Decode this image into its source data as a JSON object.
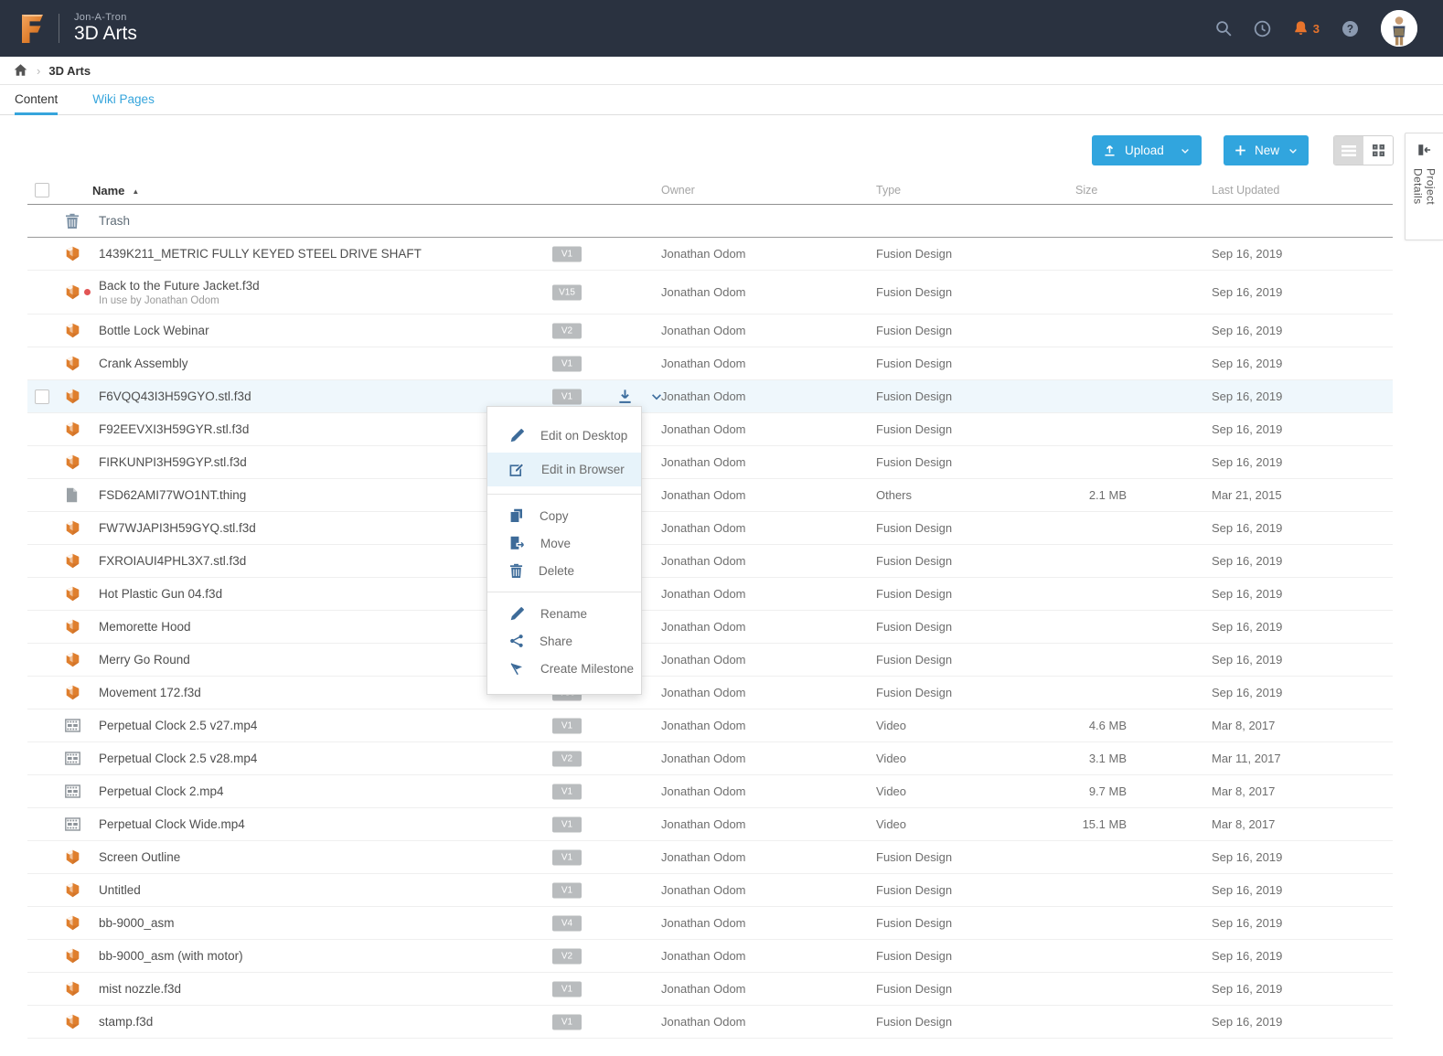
{
  "header": {
    "project": "Jon-A-Tron",
    "title": "3D Arts",
    "notification_count": "3",
    "icons": [
      "search-icon",
      "history-icon",
      "bell-icon",
      "help-icon",
      "avatar"
    ]
  },
  "breadcrumb": {
    "home_icon": "home-icon",
    "current": "3D Arts"
  },
  "tabs": [
    {
      "label": "Content",
      "active": true
    },
    {
      "label": "Wiki Pages",
      "active": false
    }
  ],
  "toolbar": {
    "upload_label": "Upload",
    "new_label": "New",
    "view_modes": [
      "list-view-icon",
      "grid-view-icon"
    ],
    "panel_label": "Project Details"
  },
  "table": {
    "columns": [
      "Name",
      "Owner",
      "Type",
      "Size",
      "Last Updated"
    ],
    "sort": {
      "column": "Name",
      "direction": "asc"
    },
    "rows": [
      {
        "icon": "trash-icon",
        "name": "Trash",
        "is_trash": true
      },
      {
        "icon": "design-icon",
        "name": "1439K211_METRIC FULLY KEYED STEEL DRIVE SHAFT",
        "version": "V1",
        "owner": "Jonathan Odom",
        "file_type": "Fusion Design",
        "size": "",
        "updated": "Sep 16, 2019"
      },
      {
        "icon": "design-icon",
        "dot": true,
        "name": "Back to the Future Jacket.f3d",
        "subtext": "In use by Jonathan Odom",
        "version": "V15",
        "owner": "Jonathan Odom",
        "file_type": "Fusion Design",
        "size": "",
        "updated": "Sep 16, 2019"
      },
      {
        "icon": "design-icon",
        "name": "Bottle Lock Webinar",
        "version": "V2",
        "owner": "Jonathan Odom",
        "file_type": "Fusion Design",
        "size": "",
        "updated": "Sep 16, 2019"
      },
      {
        "icon": "design-icon",
        "name": "Crank Assembly",
        "version": "V1",
        "owner": "Jonathan Odom",
        "file_type": "Fusion Design",
        "size": "",
        "updated": "Sep 16, 2019"
      },
      {
        "icon": "design-icon",
        "name": "F6VQQ43I3H59GYO.stl.f3d",
        "version": "V1",
        "owner": "Jonathan Odom",
        "file_type": "Fusion Design",
        "size": "",
        "updated": "Sep 16, 2019",
        "selected": true
      },
      {
        "icon": "design-icon",
        "name": "F92EEVXI3H59GYR.stl.f3d",
        "version": null,
        "owner": "Jonathan Odom",
        "file_type": "Fusion Design",
        "size": "",
        "updated": "Sep 16, 2019"
      },
      {
        "icon": "design-icon",
        "name": "FIRKUNPI3H59GYP.stl.f3d",
        "version": null,
        "owner": "Jonathan Odom",
        "file_type": "Fusion Design",
        "size": "",
        "updated": "Sep 16, 2019"
      },
      {
        "icon": "file-icon",
        "name": "FSD62AMI77WO1NT.thing",
        "version": null,
        "owner": "Jonathan Odom",
        "file_type": "Others",
        "size": "2.1 MB",
        "updated": "Mar 21, 2015"
      },
      {
        "icon": "design-icon",
        "name": "FW7WJAPI3H59GYQ.stl.f3d",
        "version": null,
        "owner": "Jonathan Odom",
        "file_type": "Fusion Design",
        "size": "",
        "updated": "Sep 16, 2019"
      },
      {
        "icon": "design-icon",
        "name": "FXROIAUI4PHL3X7.stl.f3d",
        "version": null,
        "owner": "Jonathan Odom",
        "file_type": "Fusion Design",
        "size": "",
        "updated": "Sep 16, 2019"
      },
      {
        "icon": "design-icon",
        "name": "Hot Plastic Gun 04.f3d",
        "version": null,
        "owner": "Jonathan Odom",
        "file_type": "Fusion Design",
        "size": "",
        "updated": "Sep 16, 2019"
      },
      {
        "icon": "design-icon",
        "name": "Memorette Hood",
        "version": null,
        "owner": "Jonathan Odom",
        "file_type": "Fusion Design",
        "size": "",
        "updated": "Sep 16, 2019"
      },
      {
        "icon": "design-icon",
        "name": "Merry Go Round",
        "version": null,
        "owner": "Jonathan Odom",
        "file_type": "Fusion Design",
        "size": "",
        "updated": "Sep 16, 2019"
      },
      {
        "icon": "design-icon",
        "name": "Movement 172.f3d",
        "version": "V30",
        "owner": "Jonathan Odom",
        "file_type": "Fusion Design",
        "size": "",
        "updated": "Sep 16, 2019"
      },
      {
        "icon": "video-icon",
        "name": "Perpetual Clock 2.5 v27.mp4",
        "version": "V1",
        "owner": "Jonathan Odom",
        "file_type": "Video",
        "size": "4.6 MB",
        "updated": "Mar 8, 2017"
      },
      {
        "icon": "video-icon",
        "name": "Perpetual Clock 2.5 v28.mp4",
        "version": "V2",
        "owner": "Jonathan Odom",
        "file_type": "Video",
        "size": "3.1 MB",
        "updated": "Mar 11, 2017"
      },
      {
        "icon": "video-icon",
        "name": "Perpetual Clock 2.mp4",
        "version": "V1",
        "owner": "Jonathan Odom",
        "file_type": "Video",
        "size": "9.7 MB",
        "updated": "Mar 8, 2017"
      },
      {
        "icon": "video-icon",
        "name": "Perpetual Clock Wide.mp4",
        "version": "V1",
        "owner": "Jonathan Odom",
        "file_type": "Video",
        "size": "15.1 MB",
        "updated": "Mar 8, 2017"
      },
      {
        "icon": "design-icon",
        "name": "Screen Outline",
        "version": "V1",
        "owner": "Jonathan Odom",
        "file_type": "Fusion Design",
        "size": "",
        "updated": "Sep 16, 2019"
      },
      {
        "icon": "design-icon",
        "name": "Untitled",
        "version": "V1",
        "owner": "Jonathan Odom",
        "file_type": "Fusion Design",
        "size": "",
        "updated": "Sep 16, 2019"
      },
      {
        "icon": "design-icon",
        "name": "bb-9000_asm",
        "version": "V4",
        "owner": "Jonathan Odom",
        "file_type": "Fusion Design",
        "size": "",
        "updated": "Sep 16, 2019"
      },
      {
        "icon": "design-icon",
        "name": "bb-9000_asm (with motor)",
        "version": "V2",
        "owner": "Jonathan Odom",
        "file_type": "Fusion Design",
        "size": "",
        "updated": "Sep 16, 2019"
      },
      {
        "icon": "design-icon",
        "name": "mist nozzle.f3d",
        "version": "V1",
        "owner": "Jonathan Odom",
        "file_type": "Fusion Design",
        "size": "",
        "updated": "Sep 16, 2019"
      },
      {
        "icon": "design-icon",
        "name": "stamp.f3d",
        "version": "V1",
        "owner": "Jonathan Odom",
        "file_type": "Fusion Design",
        "size": "",
        "updated": "Sep 16, 2019"
      }
    ]
  },
  "row_actions": [
    "download-icon",
    "chevron-down-icon"
  ],
  "context_menu": {
    "groups": [
      {
        "items": [
          {
            "icon": "pencil-icon",
            "label": "Edit on Desktop"
          },
          {
            "icon": "edit-in-browser-icon",
            "label": "Edit in Browser",
            "highlighted": true
          }
        ]
      },
      {
        "items": [
          {
            "icon": "copy-icon",
            "label": "Copy"
          },
          {
            "icon": "move-icon",
            "label": "Move"
          },
          {
            "icon": "trash-blue-icon",
            "label": "Delete"
          }
        ]
      },
      {
        "items": [
          {
            "icon": "pencil-icon",
            "label": "Rename"
          },
          {
            "icon": "share-icon",
            "label": "Share"
          },
          {
            "icon": "flag-icon",
            "label": "Create Milestone"
          }
        ]
      }
    ]
  },
  "colors": {
    "header_bg": "#2a3240",
    "accent_blue": "#36a5dc",
    "button_blue": "#31a5de",
    "brand_orange": "#e8742c",
    "menu_icon_blue": "#3d6b99",
    "badge_gray": "#b9bcbe",
    "selected_row_bg": "#eff7fc"
  }
}
